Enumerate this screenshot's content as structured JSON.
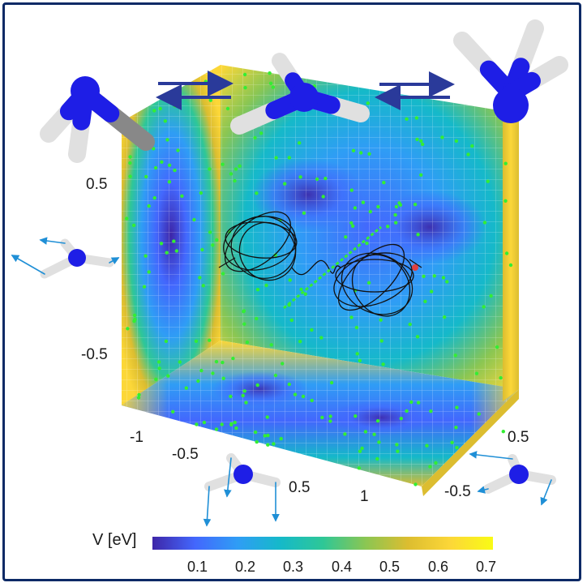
{
  "axis_ticks": {
    "left": [
      "0.5",
      "-0.5"
    ],
    "front_x": [
      "-1",
      "-0.5",
      "0.5",
      "1"
    ],
    "right": [
      "0.5",
      "-0.5"
    ]
  },
  "colorbar": {
    "title": "V [eV]",
    "ticks": [
      "0.1",
      "0.2",
      "0.3",
      "0.4",
      "0.5",
      "0.6",
      "0.7"
    ],
    "colors": [
      "#3e26a8",
      "#4367fd",
      "#2f9df5",
      "#15b9c9",
      "#2ec797",
      "#8ac653",
      "#dcbd30",
      "#fcd738",
      "#f9fb15"
    ]
  },
  "colors": {
    "nitrogen": "#1e1ee6",
    "hydrogen": "#eeeeee",
    "arrow": "#2a3a9a",
    "trajectory": "#111111",
    "dots": "#33ee33",
    "frame": "#0d2a66"
  },
  "icons": [
    "molecule-icon",
    "double-arrow-icon",
    "colorbar-icon"
  ]
}
